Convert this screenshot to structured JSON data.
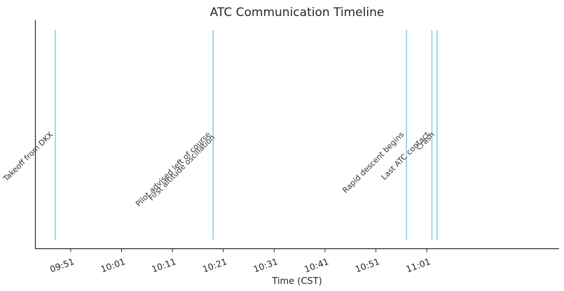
{
  "chart_data": {
    "type": "timeline",
    "title": "ATC Communication Timeline",
    "xlabel": "Time (CST)",
    "ylabel": "",
    "x_ticks": [
      "09:51",
      "10:01",
      "10:11",
      "10:21",
      "10:31",
      "10:41",
      "10:51",
      "11:01"
    ],
    "x_range": [
      "09:44",
      "11:27"
    ],
    "events": [
      {
        "time": "09:48",
        "label": "Takeoff from DKX"
      },
      {
        "time": "10:19",
        "label": "Pilot advised left of course"
      },
      {
        "time": "10:19",
        "label": "First altitude oscillation"
      },
      {
        "time": "10:57",
        "label": "Rapid descent begins"
      },
      {
        "time": "11:02",
        "label": "Last ATC contact"
      },
      {
        "time": "11:03",
        "label": "Crash"
      }
    ],
    "line_color": "#87ceeb",
    "grid": false
  }
}
